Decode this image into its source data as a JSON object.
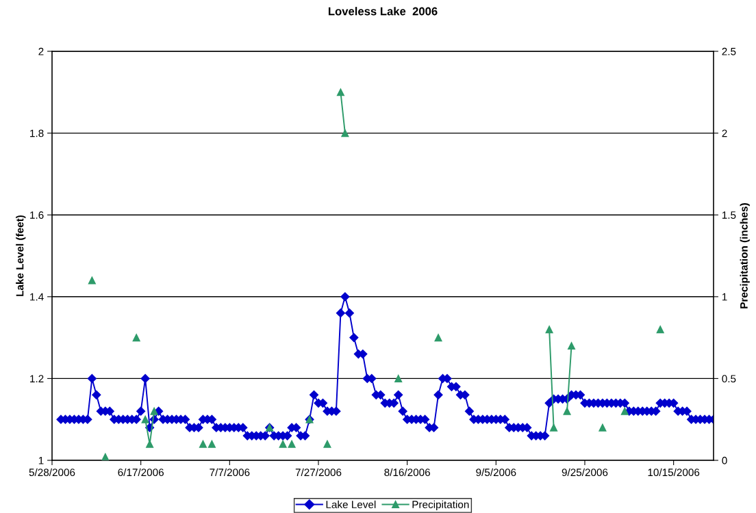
{
  "chart_data": {
    "type": "line",
    "title": "Loveless Lake  2006",
    "ylabel": "Lake Level (feet)",
    "y2label": "Precipitation (inches)",
    "x": [
      "2006-05-30",
      "2006-05-31",
      "2006-06-01",
      "2006-06-02",
      "2006-06-03",
      "2006-06-04",
      "2006-06-05",
      "2006-06-06",
      "2006-06-07",
      "2006-06-08",
      "2006-06-09",
      "2006-06-10",
      "2006-06-11",
      "2006-06-12",
      "2006-06-13",
      "2006-06-14",
      "2006-06-15",
      "2006-06-16",
      "2006-06-17",
      "2006-06-18",
      "2006-06-19",
      "2006-06-20",
      "2006-06-21",
      "2006-06-22",
      "2006-06-23",
      "2006-06-24",
      "2006-06-25",
      "2006-06-26",
      "2006-06-27",
      "2006-06-28",
      "2006-06-29",
      "2006-06-30",
      "2006-07-01",
      "2006-07-02",
      "2006-07-03",
      "2006-07-04",
      "2006-07-05",
      "2006-07-06",
      "2006-07-07",
      "2006-07-08",
      "2006-07-09",
      "2006-07-10",
      "2006-07-11",
      "2006-07-12",
      "2006-07-13",
      "2006-07-14",
      "2006-07-15",
      "2006-07-16",
      "2006-07-17",
      "2006-07-18",
      "2006-07-19",
      "2006-07-20",
      "2006-07-21",
      "2006-07-22",
      "2006-07-23",
      "2006-07-24",
      "2006-07-25",
      "2006-07-26",
      "2006-07-27",
      "2006-07-28",
      "2006-07-29",
      "2006-07-30",
      "2006-07-31",
      "2006-08-01",
      "2006-08-02",
      "2006-08-03",
      "2006-08-04",
      "2006-08-05",
      "2006-08-06",
      "2006-08-07",
      "2006-08-08",
      "2006-08-09",
      "2006-08-10",
      "2006-08-11",
      "2006-08-12",
      "2006-08-13",
      "2006-08-14",
      "2006-08-15",
      "2006-08-16",
      "2006-08-17",
      "2006-08-18",
      "2006-08-19",
      "2006-08-20",
      "2006-08-21",
      "2006-08-22",
      "2006-08-23",
      "2006-08-24",
      "2006-08-25",
      "2006-08-26",
      "2006-08-27",
      "2006-08-28",
      "2006-08-29",
      "2006-08-30",
      "2006-08-31",
      "2006-09-01",
      "2006-09-02",
      "2006-09-03",
      "2006-09-04",
      "2006-09-05",
      "2006-09-06",
      "2006-09-07",
      "2006-09-08",
      "2006-09-09",
      "2006-09-10",
      "2006-09-11",
      "2006-09-12",
      "2006-09-13",
      "2006-09-14",
      "2006-09-15",
      "2006-09-16",
      "2006-09-17",
      "2006-09-18",
      "2006-09-19",
      "2006-09-20",
      "2006-09-21",
      "2006-09-22",
      "2006-09-23",
      "2006-09-24",
      "2006-09-25",
      "2006-09-26",
      "2006-09-27",
      "2006-09-28",
      "2006-09-29",
      "2006-09-30",
      "2006-10-01",
      "2006-10-02",
      "2006-10-03",
      "2006-10-04",
      "2006-10-05",
      "2006-10-06",
      "2006-10-07",
      "2006-10-08",
      "2006-10-09",
      "2006-10-10",
      "2006-10-11",
      "2006-10-12",
      "2006-10-13",
      "2006-10-14",
      "2006-10-15",
      "2006-10-16",
      "2006-10-17",
      "2006-10-18",
      "2006-10-19",
      "2006-10-20",
      "2006-10-21",
      "2006-10-22",
      "2006-10-23",
      "2006-10-24"
    ],
    "series": [
      {
        "name": "Lake Level",
        "color": "#0000cc",
        "marker": "diamond",
        "values": [
          1.1,
          1.1,
          1.1,
          1.1,
          1.1,
          1.1,
          1.1,
          1.2,
          1.16,
          1.12,
          1.12,
          1.12,
          1.1,
          1.1,
          1.1,
          1.1,
          1.1,
          1.1,
          1.12,
          1.2,
          1.08,
          1.1,
          1.12,
          1.1,
          1.1,
          1.1,
          1.1,
          1.1,
          1.1,
          1.08,
          1.08,
          1.08,
          1.1,
          1.1,
          1.1,
          1.08,
          1.08,
          1.08,
          1.08,
          1.08,
          1.08,
          1.08,
          1.06,
          1.06,
          1.06,
          1.06,
          1.06,
          1.08,
          1.06,
          1.06,
          1.06,
          1.06,
          1.08,
          1.08,
          1.06,
          1.06,
          1.1,
          1.16,
          1.14,
          1.14,
          1.12,
          1.12,
          1.12,
          1.36,
          1.4,
          1.36,
          1.3,
          1.26,
          1.26,
          1.2,
          1.2,
          1.16,
          1.16,
          1.14,
          1.14,
          1.14,
          1.16,
          1.12,
          1.1,
          1.1,
          1.1,
          1.1,
          1.1,
          1.08,
          1.08,
          1.16,
          1.2,
          1.2,
          1.18,
          1.18,
          1.16,
          1.16,
          1.12,
          1.1,
          1.1,
          1.1,
          1.1,
          1.1,
          1.1,
          1.1,
          1.1,
          1.08,
          1.08,
          1.08,
          1.08,
          1.08,
          1.06,
          1.06,
          1.06,
          1.06,
          1.14,
          1.15,
          1.15,
          1.15,
          1.15,
          1.16,
          1.16,
          1.16,
          1.14,
          1.14,
          1.14,
          1.14,
          1.14,
          1.14,
          1.14,
          1.14,
          1.14,
          1.14,
          1.12,
          1.12,
          1.12,
          1.12,
          1.12,
          1.12,
          1.12,
          1.14,
          1.14,
          1.14,
          1.14,
          1.12,
          1.12,
          1.12,
          1.1,
          1.1,
          1.1,
          1.1,
          1.1,
          1.1
        ]
      },
      {
        "name": "Precipitation",
        "color": "#2e9b6a",
        "marker": "triangle",
        "axis": "y2",
        "x": [
          "2006-06-06",
          "2006-06-07",
          "2006-06-09",
          "2006-06-10",
          "2006-06-16",
          "2006-06-17",
          "2006-06-18",
          "2006-06-19",
          "2006-06-20",
          "2006-06-21",
          "2006-07-01",
          "2006-07-02",
          "2006-07-03",
          "2006-07-04",
          "2006-07-16",
          "2006-07-17",
          "2006-07-19",
          "2006-07-20",
          "2006-07-21",
          "2006-07-22",
          "2006-07-25",
          "2006-07-26",
          "2006-07-29",
          "2006-07-30",
          "2006-08-01",
          "2006-08-02",
          "2006-08-03",
          "2006-08-14",
          "2006-08-15",
          "2006-08-23",
          "2006-08-24",
          "2006-09-17",
          "2006-09-18",
          "2006-09-19",
          "2006-09-21",
          "2006-09-22",
          "2006-09-23",
          "2006-09-29",
          "2006-09-30",
          "2006-10-04",
          "2006-10-05",
          "2006-10-12"
        ],
        "values": [
          1.1,
          null,
          0.02,
          null,
          0.75,
          null,
          0.25,
          0.1,
          0.3,
          null,
          0.1,
          null,
          0.1,
          null,
          0.2,
          null,
          0.1,
          null,
          0.1,
          null,
          0.25,
          null,
          0.1,
          null,
          2.25,
          2.0,
          null,
          0.5,
          null,
          0.75,
          null,
          0.8,
          0.2,
          null,
          0.3,
          0.7,
          null,
          0.2,
          null,
          0.3,
          null,
          0.8
        ]
      }
    ],
    "xlim": [
      "2006-05-28",
      "2006-10-24"
    ],
    "xticks": [
      {
        "value": "2006-05-28",
        "label": "5/28/2006"
      },
      {
        "value": "2006-06-17",
        "label": "6/17/2006"
      },
      {
        "value": "2006-07-07",
        "label": "7/7/2006"
      },
      {
        "value": "2006-07-27",
        "label": "7/27/2006"
      },
      {
        "value": "2006-08-16",
        "label": "8/16/2006"
      },
      {
        "value": "2006-09-05",
        "label": "9/5/2006"
      },
      {
        "value": "2006-09-25",
        "label": "9/25/2006"
      },
      {
        "value": "2006-10-15",
        "label": "10/15/2006"
      }
    ],
    "ylim": [
      1,
      2
    ],
    "yticks": [
      1,
      1.2,
      1.4,
      1.6,
      1.8,
      2
    ],
    "y2lim": [
      0,
      2.5
    ],
    "y2ticks": [
      0,
      0.5,
      1,
      1.5,
      2,
      2.5
    ],
    "grid": "y",
    "legend": "bottom"
  }
}
